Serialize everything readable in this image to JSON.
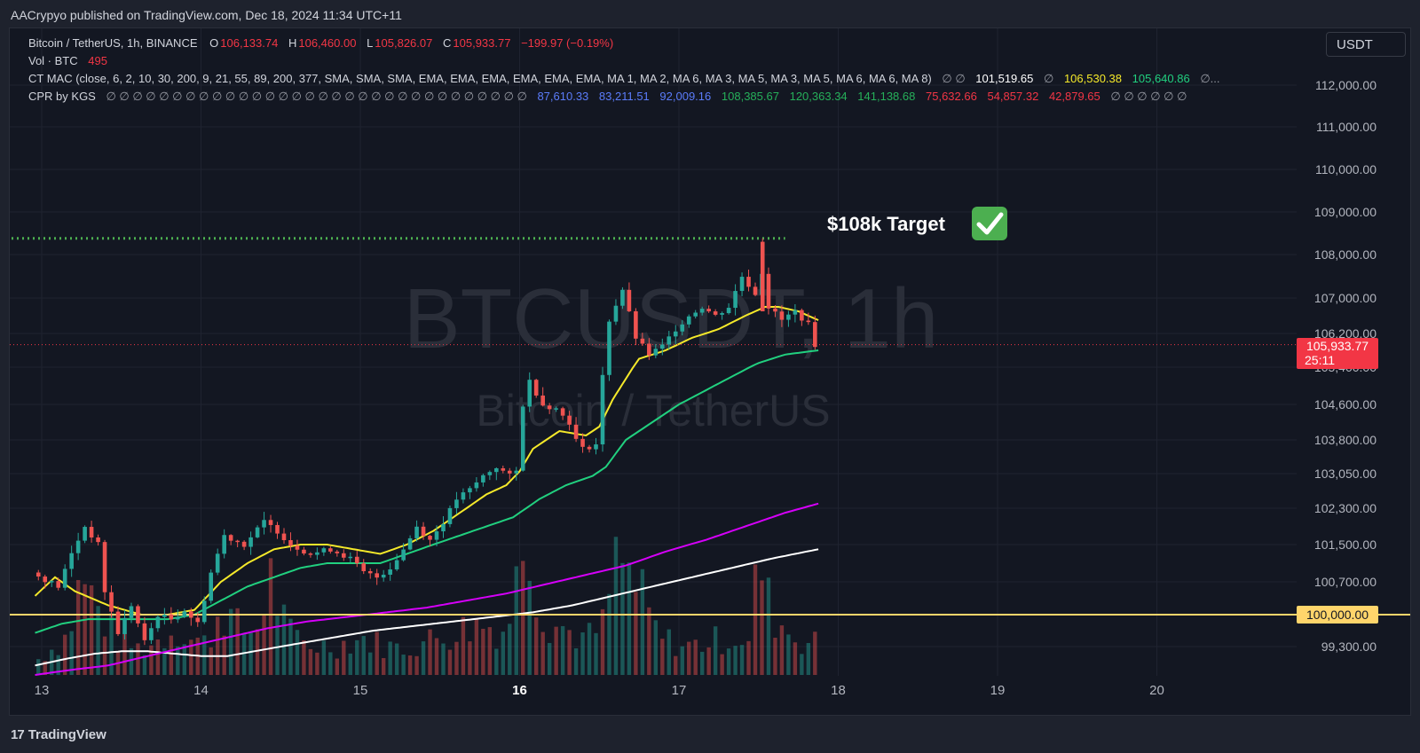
{
  "publisher": "AACrypyo published on TradingView.com, Dec 18, 2024 11:34 UTC+11",
  "footer_brand": "TradingView",
  "currency": "USDT",
  "legend": {
    "symbol": "Bitcoin / TetherUS, 1h, BINANCE",
    "o_label": "O",
    "o": "106,133.74",
    "h_label": "H",
    "h": "106,460.00",
    "l_label": "L",
    "l": "105,826.07",
    "c_label": "C",
    "c": "105,933.77",
    "change": "−199.97 (−0.19%)",
    "vol_label": "Vol · BTC",
    "vol": "495",
    "mac_label": "CT MAC (close, 6, 2, 10, 30, 200, 9, 21, 55, 89, 200, 377, SMA, SMA, SMA, EMA, EMA, EMA, EMA, EMA, EMA, MA 1, MA 2, MA 6, MA 3, MA 5, MA 3, MA 5, MA 6, MA 6, MA 8)",
    "mac_sym": "∅ ∅",
    "mac_v1": "101,519.65",
    "mac_sym2": "∅",
    "mac_v2": "106,530.38",
    "mac_v3": "105,640.86",
    "mac_tail": "∅...",
    "cpr_label": "CPR by KGS",
    "cpr_syms": "∅ ∅ ∅ ∅ ∅ ∅ ∅ ∅ ∅ ∅ ∅ ∅ ∅ ∅ ∅ ∅ ∅ ∅ ∅ ∅ ∅ ∅ ∅ ∅ ∅ ∅ ∅ ∅ ∅ ∅ ∅ ∅",
    "cpr_blue": [
      "87,610.33",
      "83,211.51",
      "92,009.16"
    ],
    "cpr_green": [
      "108,385.67",
      "120,363.34",
      "141,138.68"
    ],
    "cpr_red": [
      "75,632.66",
      "54,857.32",
      "42,879.65"
    ],
    "cpr_tail": "∅ ∅ ∅ ∅ ∅ ∅"
  },
  "colors": {
    "up": "#26a69a",
    "down": "#ef5350",
    "ema_yellow": "#f5e92a",
    "ema_green": "#21d07f",
    "ma_magenta": "#d500f9",
    "ma_white": "#ffffff",
    "level_line": "#ffd56b",
    "target_dots": "#4caf50",
    "price_tag": "#f23645",
    "grid": "#1f2330"
  },
  "watermark": {
    "symbol": "BTCUSDT, 1h",
    "name": "Bitcoin / TetherUS"
  },
  "annotation": {
    "text": "$108k Target",
    "icon": "check-mark-icon"
  },
  "price_tag": {
    "price": "105,933.77",
    "countdown": "25:11"
  },
  "level_tag": "100,000.00",
  "chart_data": {
    "type": "candlestick",
    "title": "Bitcoin / TetherUS, 1h, BINANCE",
    "y_axis": {
      "ticks": [
        112000,
        111000,
        110000,
        109000,
        108000,
        107000,
        106200,
        105400,
        104600,
        103800,
        103050,
        102300,
        101500,
        100700,
        99300
      ],
      "tick_labels": [
        "112,000.00",
        "111,000.00",
        "110,000.00",
        "109,000.00",
        "108,000.00",
        "107,000.00",
        "106,200.00",
        "105,400.00",
        "104,600.00",
        "103,800.00",
        "103,050.00",
        "102,300.00",
        "101,500.00",
        "100,700.00",
        "99,300.00"
      ],
      "scale": "piecewise"
    },
    "x_axis": {
      "ticks": [
        "13",
        "14",
        "15",
        "16",
        "17",
        "18",
        "19",
        "20"
      ],
      "bold": [
        "16"
      ],
      "tick_hours": [
        0,
        24,
        48,
        72,
        96,
        120,
        144,
        168
      ]
    },
    "horizontal_levels": [
      {
        "name": "psychological",
        "value": 100000,
        "style": "solid"
      },
      {
        "name": "target",
        "value": 108380,
        "style": "dotted"
      },
      {
        "name": "last-price",
        "value": 105933.77,
        "style": "dotted"
      }
    ],
    "candle_anchors": [
      [
        -1,
        100900
      ],
      [
        3,
        100600
      ],
      [
        5,
        101300
      ],
      [
        7,
        101900
      ],
      [
        9,
        101500
      ],
      [
        10,
        100500
      ],
      [
        12,
        99600
      ],
      [
        14,
        100200
      ],
      [
        16,
        99400
      ],
      [
        18,
        100000
      ],
      [
        20,
        99900
      ],
      [
        22,
        100100
      ],
      [
        24,
        99800
      ],
      [
        26,
        100900
      ],
      [
        28,
        101700
      ],
      [
        31,
        101500
      ],
      [
        34,
        102000
      ],
      [
        36,
        101800
      ],
      [
        38,
        101500
      ],
      [
        41,
        101300
      ],
      [
        44,
        101400
      ],
      [
        47,
        101200
      ],
      [
        49,
        100900
      ],
      [
        51,
        100800
      ],
      [
        53,
        101000
      ],
      [
        55,
        101400
      ],
      [
        57,
        101900
      ],
      [
        59,
        101600
      ],
      [
        61,
        102000
      ],
      [
        63,
        102500
      ],
      [
        65,
        102700
      ],
      [
        67,
        103000
      ],
      [
        69,
        103200
      ],
      [
        71,
        103000
      ],
      [
        72,
        103100
      ],
      [
        73,
        104600
      ],
      [
        74,
        105100
      ],
      [
        76,
        104600
      ],
      [
        78,
        104500
      ],
      [
        80,
        104200
      ],
      [
        81,
        103800
      ],
      [
        82,
        103600
      ],
      [
        84,
        103700
      ],
      [
        85,
        105200
      ],
      [
        86,
        106500
      ],
      [
        88,
        107200
      ],
      [
        90,
        106100
      ],
      [
        92,
        105700
      ],
      [
        94,
        105900
      ],
      [
        96,
        106300
      ],
      [
        98,
        106600
      ],
      [
        100,
        106800
      ],
      [
        102,
        106600
      ],
      [
        104,
        106800
      ],
      [
        106,
        107500
      ],
      [
        108,
        107100
      ],
      [
        109,
        107600
      ],
      [
        110,
        106800
      ],
      [
        112,
        106500
      ],
      [
        114,
        106700
      ],
      [
        116,
        106400
      ],
      [
        117,
        105933
      ]
    ],
    "ema_yellow": [
      [
        -1,
        100400
      ],
      [
        2,
        100800
      ],
      [
        5,
        100500
      ],
      [
        10,
        100200
      ],
      [
        15,
        100000
      ],
      [
        19,
        100000
      ],
      [
        23,
        100100
      ],
      [
        27,
        100700
      ],
      [
        31,
        101100
      ],
      [
        35,
        101400
      ],
      [
        39,
        101500
      ],
      [
        43,
        101500
      ],
      [
        47,
        101400
      ],
      [
        51,
        101300
      ],
      [
        55,
        101500
      ],
      [
        59,
        101800
      ],
      [
        63,
        102200
      ],
      [
        67,
        102600
      ],
      [
        70,
        102800
      ],
      [
        72,
        103100
      ],
      [
        74,
        103600
      ],
      [
        78,
        104000
      ],
      [
        82,
        103900
      ],
      [
        84,
        104100
      ],
      [
        86,
        104700
      ],
      [
        90,
        105600
      ],
      [
        94,
        105800
      ],
      [
        98,
        106100
      ],
      [
        102,
        106300
      ],
      [
        106,
        106600
      ],
      [
        109,
        106800
      ],
      [
        111,
        106800
      ],
      [
        114,
        106700
      ],
      [
        117,
        106500
      ]
    ],
    "ema_green": [
      [
        -1,
        99600
      ],
      [
        3,
        99800
      ],
      [
        7,
        99900
      ],
      [
        11,
        99900
      ],
      [
        15,
        99900
      ],
      [
        19,
        99900
      ],
      [
        23,
        100000
      ],
      [
        27,
        100300
      ],
      [
        31,
        100600
      ],
      [
        35,
        100800
      ],
      [
        39,
        101000
      ],
      [
        43,
        101100
      ],
      [
        47,
        101100
      ],
      [
        51,
        101100
      ],
      [
        55,
        101300
      ],
      [
        59,
        101500
      ],
      [
        63,
        101700
      ],
      [
        67,
        101900
      ],
      [
        71,
        102100
      ],
      [
        75,
        102500
      ],
      [
        79,
        102800
      ],
      [
        83,
        103000
      ],
      [
        85,
        103200
      ],
      [
        88,
        103800
      ],
      [
        92,
        104200
      ],
      [
        96,
        104600
      ],
      [
        100,
        104900
      ],
      [
        104,
        105200
      ],
      [
        108,
        105500
      ],
      [
        112,
        105700
      ],
      [
        117,
        105800
      ]
    ],
    "ma_magenta": [
      [
        -1,
        98700
      ],
      [
        4,
        98800
      ],
      [
        10,
        98900
      ],
      [
        16,
        99100
      ],
      [
        22,
        99300
      ],
      [
        28,
        99500
      ],
      [
        34,
        99700
      ],
      [
        40,
        99850
      ],
      [
        46,
        99950
      ],
      [
        52,
        100050
      ],
      [
        58,
        100150
      ],
      [
        64,
        100300
      ],
      [
        70,
        100450
      ],
      [
        76,
        100650
      ],
      [
        82,
        100850
      ],
      [
        88,
        101050
      ],
      [
        94,
        101350
      ],
      [
        100,
        101600
      ],
      [
        106,
        101900
      ],
      [
        112,
        102200
      ],
      [
        117,
        102400
      ]
    ],
    "ma_white": [
      [
        -1,
        98900
      ],
      [
        4,
        99050
      ],
      [
        8,
        99150
      ],
      [
        12,
        99200
      ],
      [
        16,
        99200
      ],
      [
        20,
        99150
      ],
      [
        24,
        99100
      ],
      [
        28,
        99100
      ],
      [
        32,
        99200
      ],
      [
        38,
        99350
      ],
      [
        44,
        99500
      ],
      [
        50,
        99650
      ],
      [
        56,
        99750
      ],
      [
        62,
        99850
      ],
      [
        68,
        99950
      ],
      [
        74,
        100050
      ],
      [
        80,
        100200
      ],
      [
        86,
        100400
      ],
      [
        92,
        100600
      ],
      [
        98,
        100800
      ],
      [
        104,
        101000
      ],
      [
        110,
        101200
      ],
      [
        117,
        101400
      ]
    ],
    "volume_anchors": [
      [
        -1,
        15
      ],
      [
        4,
        45
      ],
      [
        6,
        110
      ],
      [
        8,
        80
      ],
      [
        10,
        55
      ],
      [
        12,
        35
      ],
      [
        15,
        30
      ],
      [
        18,
        40
      ],
      [
        20,
        55
      ],
      [
        22,
        42
      ],
      [
        25,
        35
      ],
      [
        27,
        80
      ],
      [
        30,
        48
      ],
      [
        33,
        55
      ],
      [
        34,
        120
      ],
      [
        37,
        48
      ],
      [
        40,
        35
      ],
      [
        44,
        32
      ],
      [
        48,
        42
      ],
      [
        52,
        32
      ],
      [
        55,
        30
      ],
      [
        58,
        38
      ],
      [
        62,
        48
      ],
      [
        66,
        58
      ],
      [
        70,
        50
      ],
      [
        72,
        120
      ],
      [
        73,
        205
      ],
      [
        75,
        70
      ],
      [
        78,
        55
      ],
      [
        82,
        40
      ],
      [
        85,
        58
      ],
      [
        86,
        125
      ],
      [
        88,
        120
      ],
      [
        90,
        92
      ],
      [
        93,
        42
      ],
      [
        97,
        32
      ],
      [
        101,
        38
      ],
      [
        105,
        44
      ],
      [
        107,
        32
      ],
      [
        108,
        160
      ],
      [
        109,
        88
      ],
      [
        111,
        60
      ],
      [
        114,
        40
      ],
      [
        117,
        35
      ]
    ]
  }
}
